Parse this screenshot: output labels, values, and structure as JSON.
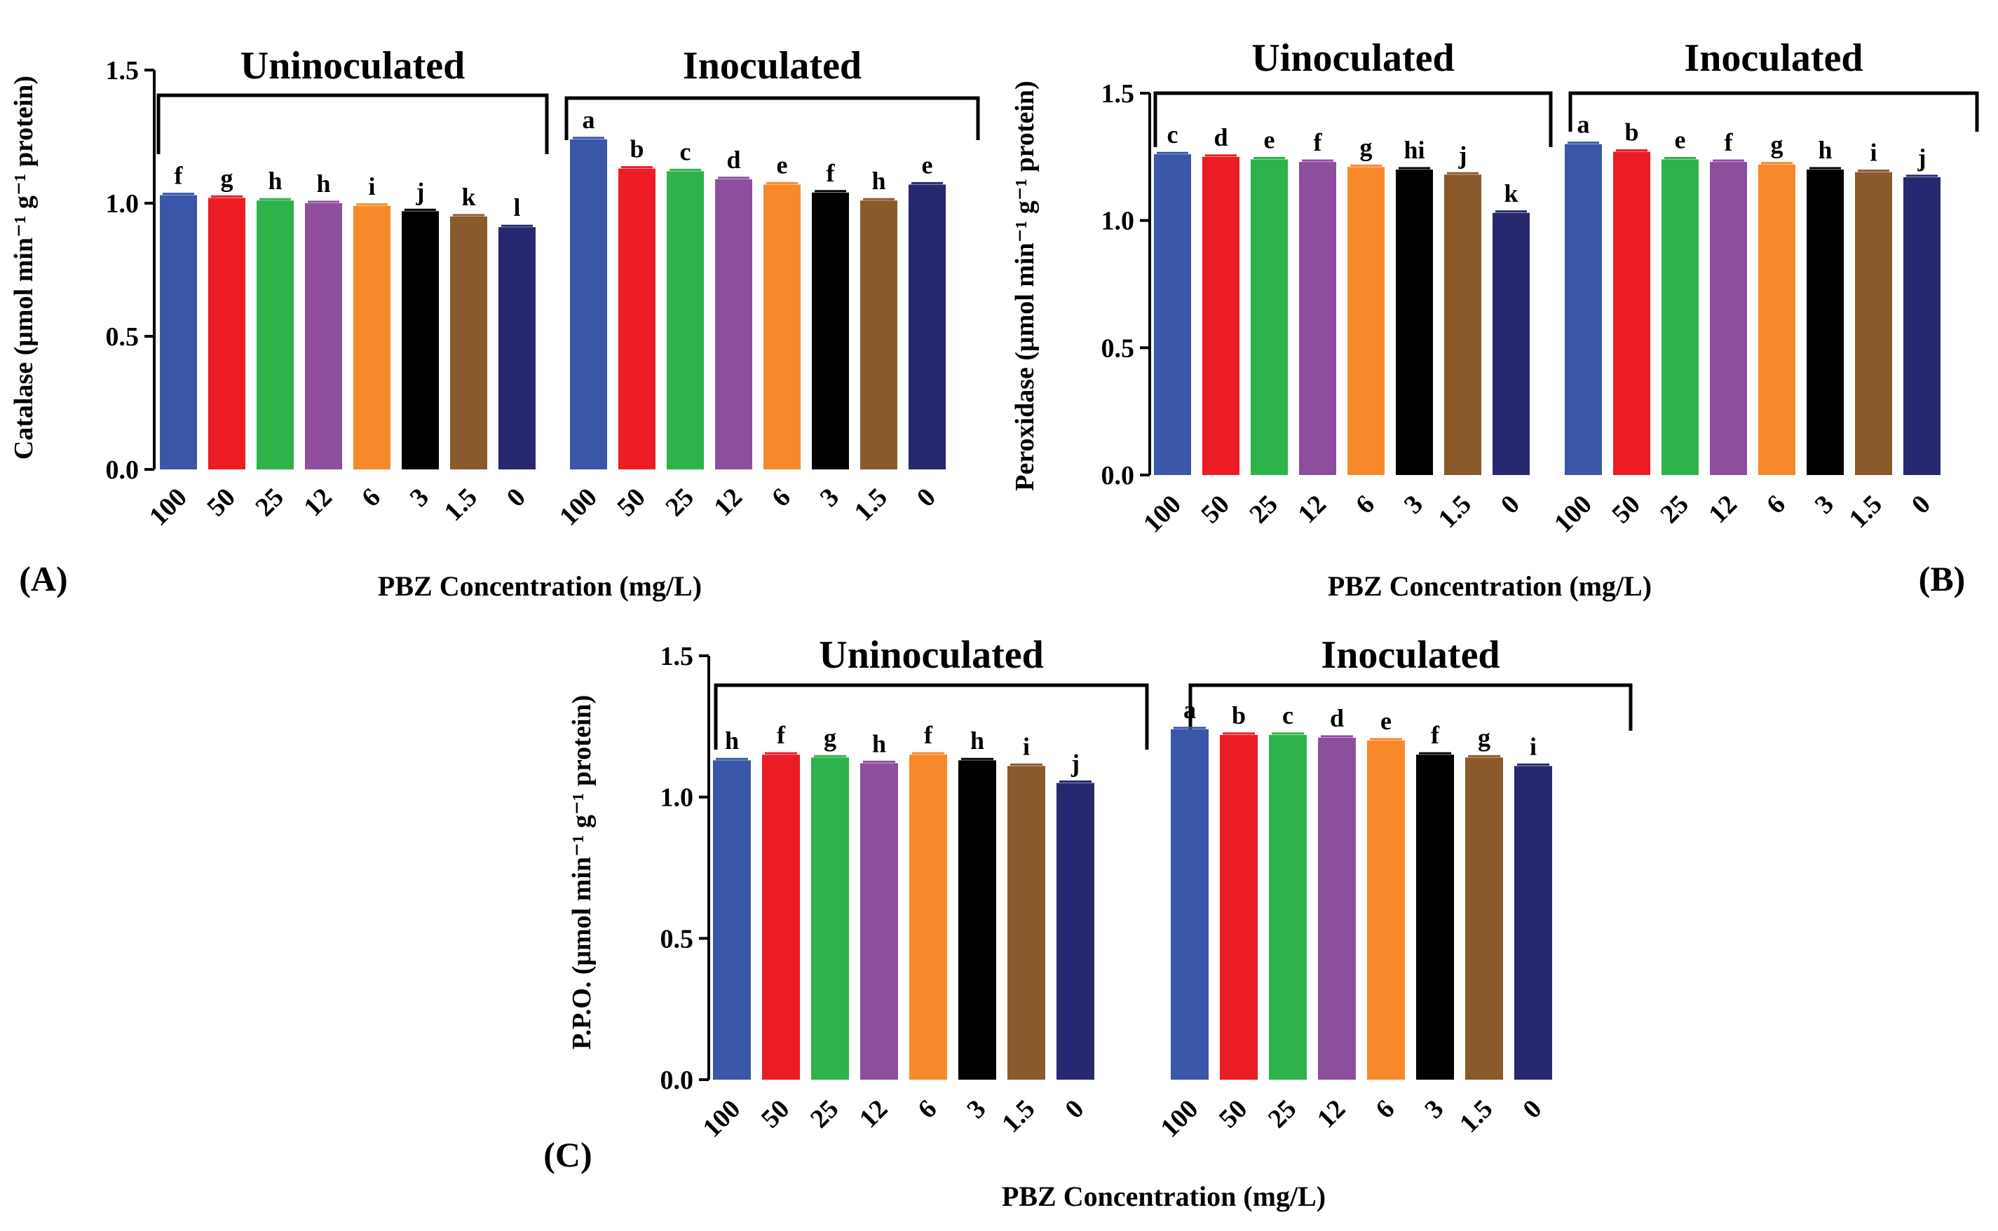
{
  "figure": {
    "colors": [
      "#3A56A8",
      "#EC1C24",
      "#2DB34A",
      "#8E4E9E",
      "#F7892B",
      "#000000",
      "#8B5A2B",
      "#27286F"
    ]
  },
  "chart_data": [
    {
      "type": "bar",
      "panel_label": "(A)",
      "xlabel": "PBZ Concentration (mg/L)",
      "ylabel": "Catalase (μmol min⁻¹ g⁻¹ protein)",
      "ylim": [
        0,
        1.5
      ],
      "yticks": [
        "0.0",
        "0.5",
        "1.0",
        "1.5"
      ],
      "groups": [
        {
          "name": "Uninoculated",
          "categories": [
            "100",
            "50",
            "25",
            "12",
            "6",
            "3",
            "1.5",
            "0"
          ],
          "values": [
            1.03,
            1.02,
            1.01,
            1.0,
            0.99,
            0.97,
            0.95,
            0.91
          ],
          "letters": [
            "f",
            "g",
            "h",
            "h",
            "i",
            "j",
            "k",
            "l"
          ]
        },
        {
          "name": "Inoculated",
          "categories": [
            "100",
            "50",
            "25",
            "12",
            "6",
            "3",
            "1.5",
            "0"
          ],
          "values": [
            1.24,
            1.13,
            1.12,
            1.09,
            1.07,
            1.04,
            1.01,
            1.07
          ],
          "letters": [
            "a",
            "b",
            "c",
            "d",
            "e",
            "f",
            "h",
            "e"
          ]
        }
      ]
    },
    {
      "type": "bar",
      "panel_label": "(B)",
      "xlabel": "PBZ Concentration (mg/L)",
      "ylabel": "Peroxidase (μmol min⁻¹ g⁻¹ protein)",
      "ylim": [
        0,
        1.5
      ],
      "yticks": [
        "0.0",
        "0.5",
        "1.0",
        "1.5"
      ],
      "groups": [
        {
          "name": "Uinoculated",
          "categories": [
            "100",
            "50",
            "25",
            "12",
            "6",
            "3",
            "1.5",
            "0"
          ],
          "values": [
            1.26,
            1.25,
            1.24,
            1.23,
            1.21,
            1.2,
            1.18,
            1.03
          ],
          "letters": [
            "c",
            "d",
            "e",
            "f",
            "g",
            "hi",
            "j",
            "k"
          ]
        },
        {
          "name": "Inoculated",
          "categories": [
            "100",
            "50",
            "25",
            "12",
            "6",
            "3",
            "1.5",
            "0"
          ],
          "values": [
            1.3,
            1.27,
            1.24,
            1.23,
            1.22,
            1.2,
            1.19,
            1.17
          ],
          "letters": [
            "a",
            "b",
            "e",
            "f",
            "g",
            "h",
            "i",
            "j"
          ]
        }
      ]
    },
    {
      "type": "bar",
      "panel_label": "(C)",
      "xlabel": "PBZ Concentration (mg/L)",
      "ylabel": "P.P.O. (μmol min⁻¹ g⁻¹ protein)",
      "ylim": [
        0,
        1.5
      ],
      "yticks": [
        "0.0",
        "0.5",
        "1.0",
        "1.5"
      ],
      "groups": [
        {
          "name": "Uninoculated",
          "categories": [
            "100",
            "50",
            "25",
            "12",
            "6",
            "3",
            "1.5",
            "0"
          ],
          "values": [
            1.13,
            1.15,
            1.14,
            1.12,
            1.15,
            1.13,
            1.11,
            1.05
          ],
          "letters": [
            "h",
            "f",
            "g",
            "h",
            "f",
            "h",
            "i",
            "j"
          ]
        },
        {
          "name": "Inoculated",
          "categories": [
            "100",
            "50",
            "25",
            "12",
            "6",
            "3",
            "1.5",
            "0"
          ],
          "values": [
            1.24,
            1.22,
            1.22,
            1.21,
            1.2,
            1.15,
            1.14,
            1.11
          ],
          "letters": [
            "a",
            "b",
            "c",
            "d",
            "e",
            "f",
            "g",
            "i"
          ]
        }
      ]
    }
  ]
}
